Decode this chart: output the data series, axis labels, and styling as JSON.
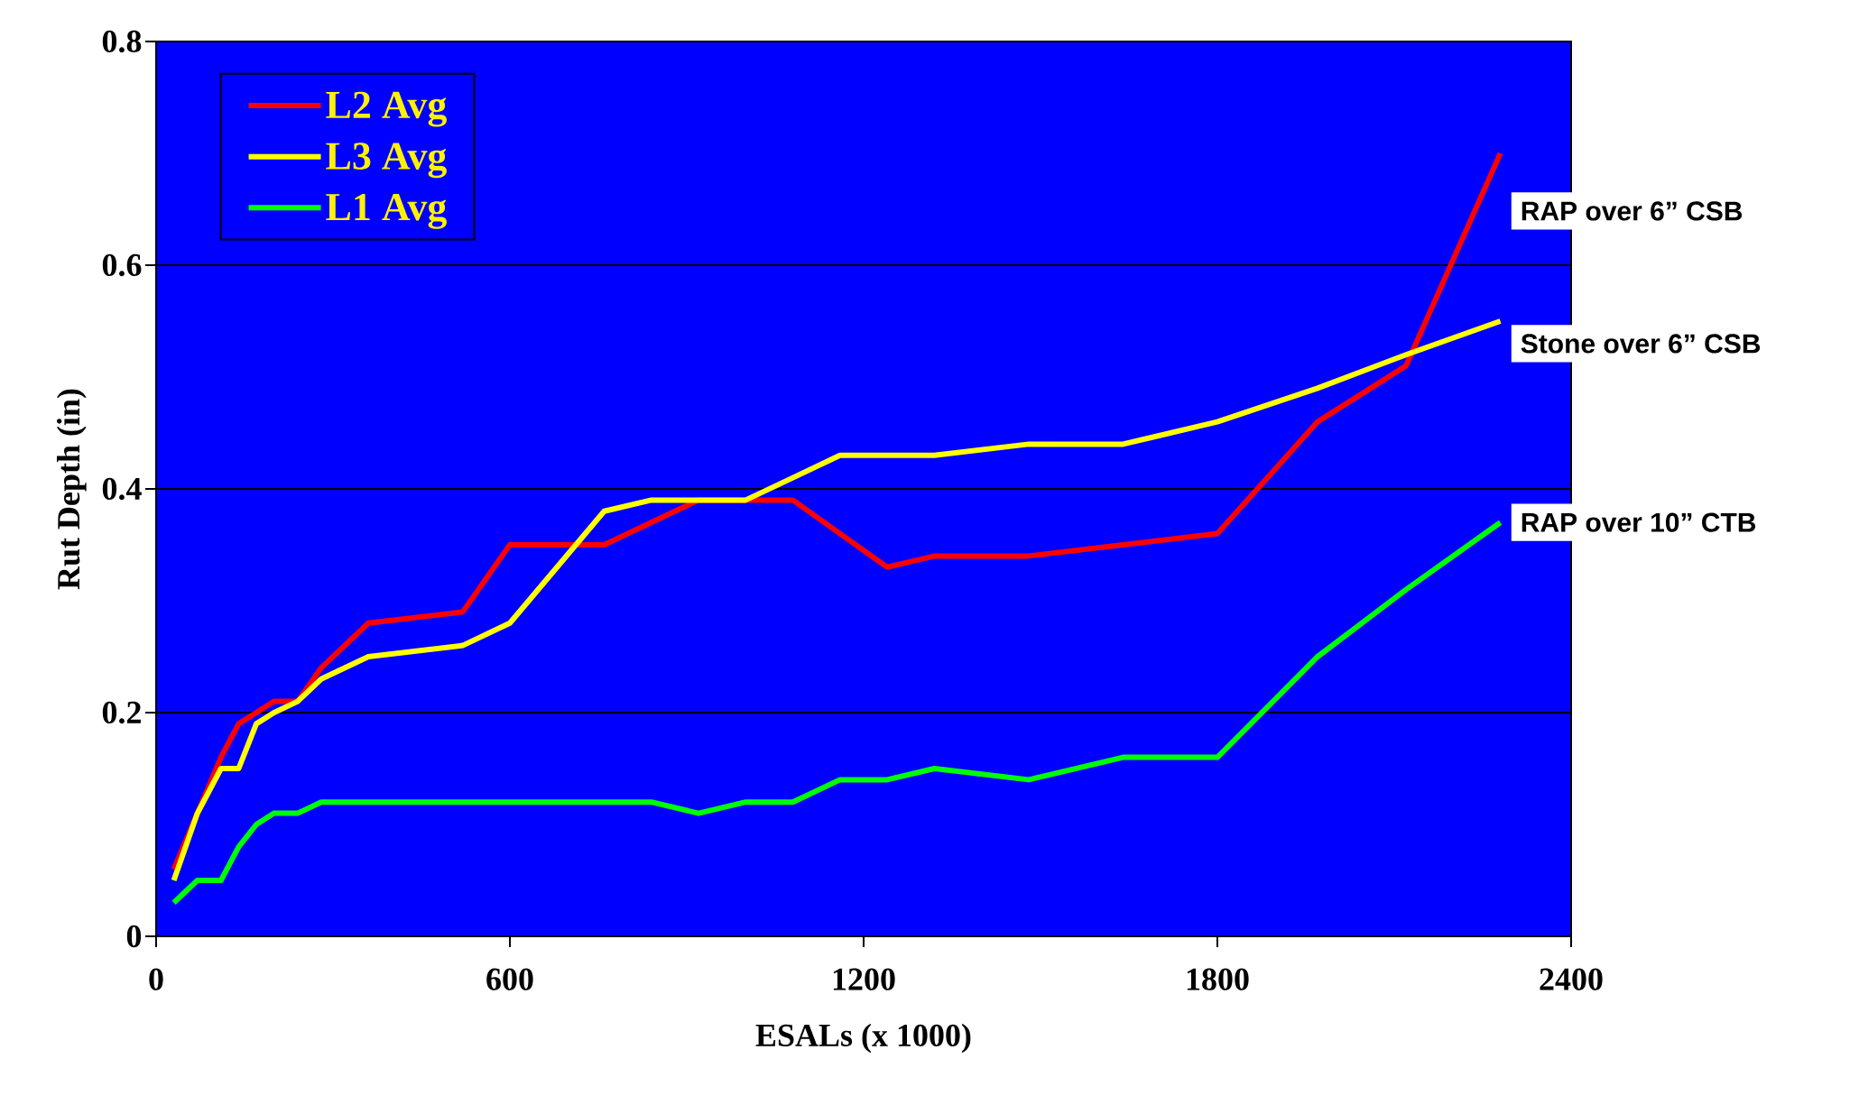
{
  "chart_data": {
    "type": "line",
    "xlabel": "ESALs (x 1000)",
    "ylabel": "Rut Depth (in)",
    "x": [
      30,
      70,
      110,
      140,
      170,
      200,
      240,
      280,
      360,
      520,
      600,
      760,
      840,
      920,
      1000,
      1080,
      1160,
      1240,
      1320,
      1480,
      1640,
      1800,
      1970,
      2120,
      2280
    ],
    "series": [
      {
        "name": "L2 Avg",
        "color": "#ff0000",
        "values": [
          0.06,
          0.11,
          0.16,
          0.19,
          0.2,
          0.21,
          0.21,
          0.24,
          0.28,
          0.29,
          0.35,
          0.35,
          0.37,
          0.39,
          0.39,
          0.39,
          0.36,
          0.33,
          0.34,
          0.34,
          0.35,
          0.36,
          0.46,
          0.51,
          0.7
        ]
      },
      {
        "name": "L3 Avg",
        "color": "#ffff00",
        "values": [
          0.05,
          0.11,
          0.15,
          0.15,
          0.19,
          0.2,
          0.21,
          0.23,
          0.25,
          0.26,
          0.28,
          0.38,
          0.39,
          0.39,
          0.39,
          0.41,
          0.43,
          0.43,
          0.43,
          0.44,
          0.44,
          0.46,
          0.49,
          0.52,
          0.55
        ]
      },
      {
        "name": "L1 Avg",
        "color": "#00ff00",
        "values": [
          0.03,
          0.05,
          0.05,
          0.08,
          0.1,
          0.11,
          0.11,
          0.12,
          0.12,
          0.12,
          0.12,
          0.12,
          0.12,
          0.11,
          0.12,
          0.12,
          0.14,
          0.14,
          0.15,
          0.14,
          0.16,
          0.16,
          0.25,
          0.31,
          0.37
        ]
      }
    ],
    "xlim": [
      0,
      2400
    ],
    "ylim": [
      0,
      0.8
    ],
    "xticks": [
      0,
      600,
      1200,
      1800,
      2400
    ],
    "yticks": [
      0,
      0.2,
      0.4,
      0.6,
      0.8
    ],
    "grid": "y",
    "legend": "top left",
    "marker": "none",
    "line_style": "solid",
    "annotations": [
      "RAP over 6” CSB",
      "Stone over 6” CSB",
      "RAP over 10” CTB"
    ]
  }
}
